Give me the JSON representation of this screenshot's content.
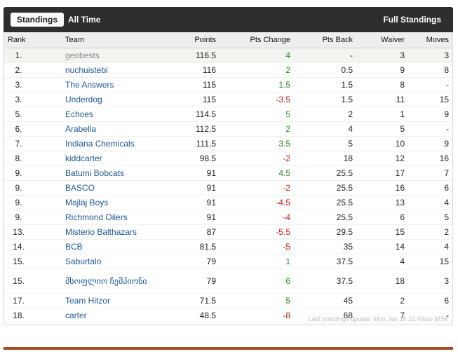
{
  "tabs": {
    "standings": "Standings",
    "all_time": "All Time",
    "full_standings": "Full Standings"
  },
  "columns": {
    "rank": "Rank",
    "team": "Team",
    "points": "Points",
    "pts_change": "Pts Change",
    "pts_back": "Pts Back",
    "waiver": "Waiver",
    "moves": "Moves"
  },
  "rows": [
    {
      "rank": "1.",
      "team": "geobests",
      "points": "116.5",
      "pts_change": "4",
      "change_sign": "pos",
      "pts_back": "-",
      "waiver": "3",
      "moves": "3"
    },
    {
      "rank": "2.",
      "team": "nuchuistebi",
      "points": "116",
      "pts_change": "2",
      "change_sign": "pos",
      "pts_back": "0.5",
      "waiver": "9",
      "moves": "8"
    },
    {
      "rank": "3.",
      "team": "The Answers",
      "points": "115",
      "pts_change": "1.5",
      "change_sign": "pos",
      "pts_back": "1.5",
      "waiver": "8",
      "moves": "-"
    },
    {
      "rank": "3.",
      "team": "Underdog",
      "points": "115",
      "pts_change": "-3.5",
      "change_sign": "neg",
      "pts_back": "1.5",
      "waiver": "11",
      "moves": "15"
    },
    {
      "rank": "5.",
      "team": "Echoes",
      "points": "114.5",
      "pts_change": "5",
      "change_sign": "pos",
      "pts_back": "2",
      "waiver": "1",
      "moves": "9"
    },
    {
      "rank": "6.",
      "team": "Arabella",
      "points": "112.5",
      "pts_change": "2",
      "change_sign": "pos",
      "pts_back": "4",
      "waiver": "5",
      "moves": "-"
    },
    {
      "rank": "7.",
      "team": "Indiana Chemicals",
      "points": "111.5",
      "pts_change": "3.5",
      "change_sign": "pos",
      "pts_back": "5",
      "waiver": "10",
      "moves": "9"
    },
    {
      "rank": "8.",
      "team": "kiddcarter",
      "points": "98.5",
      "pts_change": "-2",
      "change_sign": "neg",
      "pts_back": "18",
      "waiver": "12",
      "moves": "16"
    },
    {
      "rank": "9.",
      "team": "Batumi Bobcats",
      "points": "91",
      "pts_change": "4.5",
      "change_sign": "pos",
      "pts_back": "25.5",
      "waiver": "17",
      "moves": "7"
    },
    {
      "rank": "9.",
      "team": "BASCO",
      "points": "91",
      "pts_change": "-2",
      "change_sign": "neg",
      "pts_back": "25.5",
      "waiver": "16",
      "moves": "6"
    },
    {
      "rank": "9.",
      "team": "Majlaj Boys",
      "points": "91",
      "pts_change": "-4.5",
      "change_sign": "neg",
      "pts_back": "25.5",
      "waiver": "13",
      "moves": "4"
    },
    {
      "rank": "9.",
      "team": "Richmond Oilers",
      "points": "91",
      "pts_change": "-4",
      "change_sign": "neg",
      "pts_back": "25.5",
      "waiver": "6",
      "moves": "5"
    },
    {
      "rank": "13.",
      "team": "Misterio Balthazars",
      "points": "87",
      "pts_change": "-5.5",
      "change_sign": "neg",
      "pts_back": "29.5",
      "waiver": "15",
      "moves": "2"
    },
    {
      "rank": "14.",
      "team": "BCB",
      "points": "81.5",
      "pts_change": "-5",
      "change_sign": "neg",
      "pts_back": "35",
      "waiver": "14",
      "moves": "4"
    },
    {
      "rank": "15.",
      "team": "Saburtalo",
      "points": "79",
      "pts_change": "1",
      "change_sign": "pos",
      "pts_back": "37.5",
      "waiver": "4",
      "moves": "15"
    },
    {
      "rank": "15.",
      "team": "მსოფლიო ჩემპიონი",
      "points": "79",
      "pts_change": "6",
      "change_sign": "pos",
      "pts_back": "37.5",
      "waiver": "18",
      "moves": "3"
    },
    {
      "rank": "17.",
      "team": "Team Hitzor",
      "points": "71.5",
      "pts_change": "5",
      "change_sign": "pos",
      "pts_back": "45",
      "waiver": "2",
      "moves": "6"
    },
    {
      "rank": "18.",
      "team": "carter",
      "points": "48.5",
      "pts_change": "-8",
      "change_sign": "neg",
      "pts_back": "68",
      "waiver": "7",
      "moves": "-"
    }
  ],
  "footer": {
    "last_update": "Last standings update: Mon Jan 16 10:46am MSK"
  },
  "colors": {
    "header_bar": "#2e2e2e",
    "link": "#1e5799",
    "positive": "#2e8b2e",
    "negative": "#c81e1e",
    "bottom_bar": "#a64d24"
  }
}
